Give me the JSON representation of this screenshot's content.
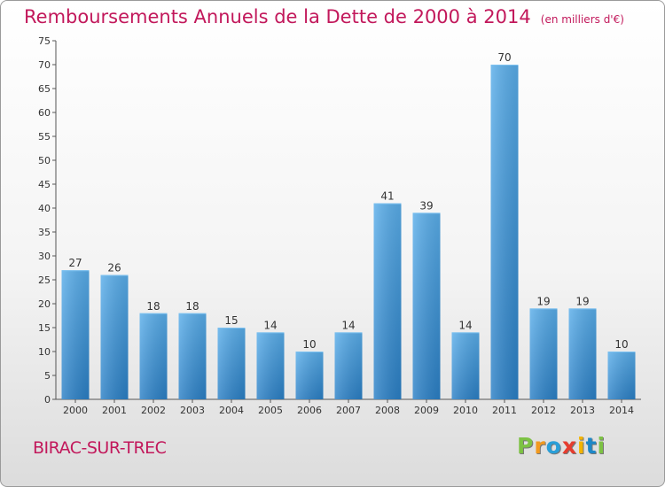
{
  "header": {
    "title": "Remboursements Annuels de la Dette de 2000 à 2014",
    "unit": "(en milliers d'€)"
  },
  "commune": "BIRAC-SUR-TREC",
  "logo": {
    "letters": [
      "P",
      "r",
      "o",
      "x",
      "i",
      "t",
      "i"
    ],
    "colors": [
      "#7dc244",
      "#f29a1f",
      "#2a9fd8",
      "#e63c2e",
      "#f4b400",
      "#1e88c8",
      "#7dc244"
    ]
  },
  "chart_data": {
    "type": "bar",
    "title": "Remboursements Annuels de la Dette de 2000 à 2014",
    "xlabel": "",
    "ylabel": "",
    "categories": [
      "2000",
      "2001",
      "2002",
      "2003",
      "2004",
      "2005",
      "2006",
      "2007",
      "2008",
      "2009",
      "2010",
      "2011",
      "2012",
      "2013",
      "2014"
    ],
    "values": [
      27,
      26,
      18,
      18,
      15,
      14,
      10,
      14,
      41,
      39,
      14,
      70,
      19,
      19,
      10
    ],
    "ylim": [
      0,
      75
    ],
    "yticks": [
      0,
      5,
      10,
      15,
      20,
      25,
      30,
      35,
      40,
      45,
      50,
      55,
      60,
      65,
      70,
      75
    ],
    "grid": false,
    "bar_color": "#3d97dd"
  }
}
